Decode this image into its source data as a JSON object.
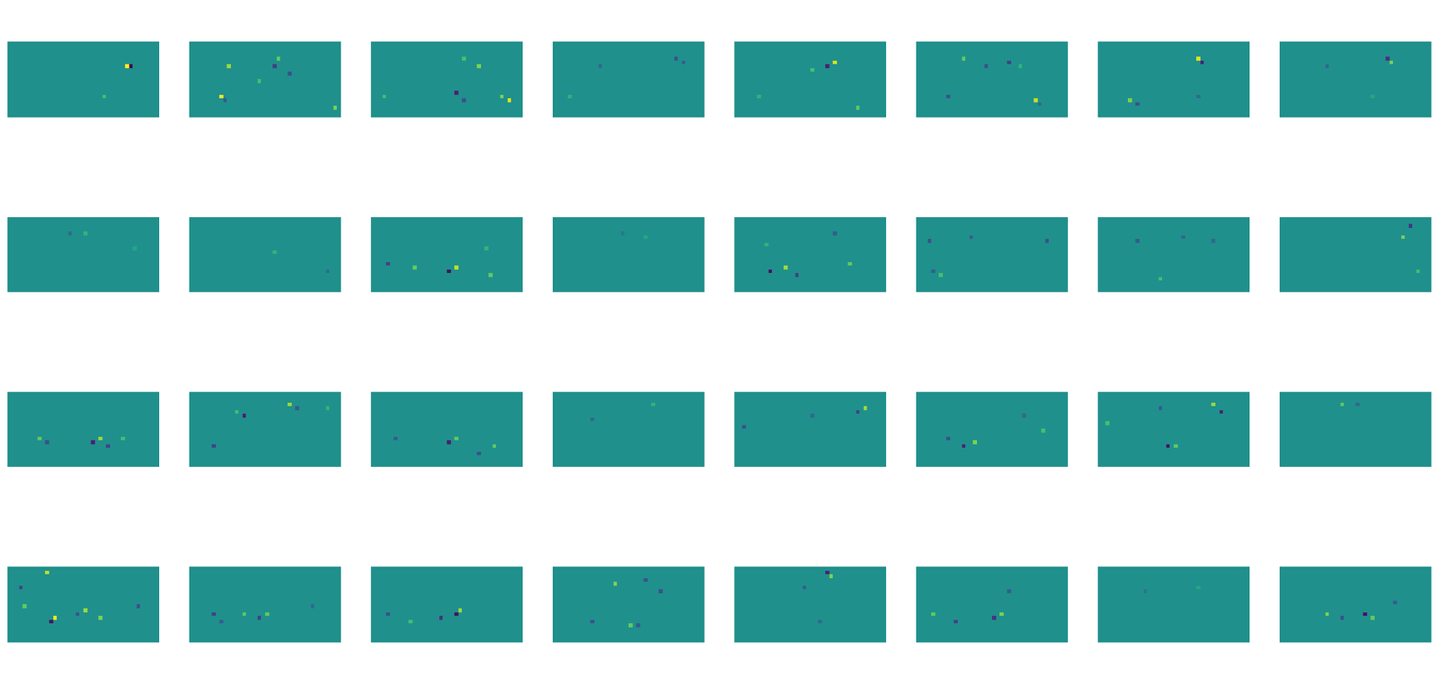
{
  "chart_data": [
    {
      "type": "heatmap",
      "shape": [
        20,
        40
      ],
      "clim": [
        -1,
        1
      ],
      "tick_labels": false,
      "cells": [
        [
          6,
          31,
          1
        ],
        [
          6,
          32,
          -1
        ],
        [
          14,
          25,
          0.4
        ]
      ]
    },
    {
      "type": "heatmap",
      "shape": [
        20,
        40
      ],
      "clim": [
        -1,
        1
      ],
      "tick_labels": false,
      "cells": [
        [
          4,
          23,
          0.5
        ],
        [
          6,
          22,
          -0.6
        ],
        [
          8,
          26,
          -0.5
        ],
        [
          10,
          18,
          0.4
        ],
        [
          14,
          8,
          1
        ],
        [
          15,
          9,
          -0.4
        ],
        [
          17,
          38,
          0.6
        ],
        [
          6,
          10,
          0.7
        ]
      ]
    },
    {
      "type": "heatmap",
      "shape": [
        20,
        40
      ],
      "clim": [
        -1,
        1
      ],
      "tick_labels": false,
      "cells": [
        [
          6,
          28,
          0.6
        ],
        [
          4,
          24,
          0.4
        ],
        [
          13,
          22,
          -0.8
        ],
        [
          15,
          24,
          -0.5
        ],
        [
          14,
          34,
          0.6
        ],
        [
          15,
          36,
          0.9
        ],
        [
          14,
          3,
          0.4
        ]
      ]
    },
    {
      "type": "heatmap",
      "shape": [
        20,
        40
      ],
      "clim": [
        -1,
        1
      ],
      "tick_labels": false,
      "cells": [
        [
          4,
          32,
          -0.5
        ],
        [
          5,
          34,
          -0.4
        ],
        [
          14,
          4,
          0.3
        ],
        [
          6,
          12,
          -0.3
        ]
      ]
    },
    {
      "type": "heatmap",
      "shape": [
        20,
        40
      ],
      "clim": [
        -1,
        1
      ],
      "tick_labels": false,
      "cells": [
        [
          6,
          24,
          -0.8
        ],
        [
          5,
          26,
          0.9
        ],
        [
          7,
          20,
          0.4
        ],
        [
          14,
          6,
          0.3
        ],
        [
          17,
          32,
          0.5
        ]
      ]
    },
    {
      "type": "heatmap",
      "shape": [
        20,
        40
      ],
      "clim": [
        -1,
        1
      ],
      "tick_labels": false,
      "cells": [
        [
          4,
          12,
          0.5
        ],
        [
          6,
          18,
          -0.5
        ],
        [
          5,
          24,
          -0.6
        ],
        [
          6,
          27,
          0.3
        ],
        [
          14,
          8,
          -0.5
        ],
        [
          15,
          31,
          0.8
        ],
        [
          16,
          32,
          -0.3
        ]
      ]
    },
    {
      "type": "heatmap",
      "shape": [
        20,
        40
      ],
      "clim": [
        -1,
        1
      ],
      "tick_labels": false,
      "cells": [
        [
          4,
          26,
          0.9
        ],
        [
          5,
          27,
          -0.8
        ],
        [
          15,
          8,
          0.6
        ],
        [
          16,
          10,
          -0.5
        ],
        [
          14,
          26,
          -0.3
        ]
      ]
    },
    {
      "type": "heatmap",
      "shape": [
        20,
        40
      ],
      "clim": [
        -1,
        1
      ],
      "tick_labels": false,
      "cells": [
        [
          4,
          28,
          -0.7
        ],
        [
          5,
          29,
          0.6
        ],
        [
          6,
          12,
          -0.3
        ],
        [
          14,
          24,
          0.2
        ]
      ]
    },
    {
      "type": "heatmap",
      "shape": [
        20,
        40
      ],
      "clim": [
        -1,
        1
      ],
      "tick_labels": false,
      "cells": [
        [
          4,
          16,
          -0.3
        ],
        [
          4,
          20,
          0.3
        ],
        [
          8,
          33,
          0.2
        ]
      ]
    },
    {
      "type": "heatmap",
      "shape": [
        20,
        40
      ],
      "clim": [
        -1,
        1
      ],
      "tick_labels": false,
      "cells": [
        [
          9,
          22,
          0.3
        ],
        [
          14,
          36,
          -0.3
        ]
      ]
    },
    {
      "type": "heatmap",
      "shape": [
        20,
        40
      ],
      "clim": [
        -1,
        1
      ],
      "tick_labels": false,
      "cells": [
        [
          12,
          4,
          -0.6
        ],
        [
          13,
          11,
          0.5
        ],
        [
          14,
          20,
          -0.9
        ],
        [
          13,
          22,
          0.8
        ],
        [
          15,
          31,
          0.5
        ],
        [
          8,
          30,
          0.3
        ]
      ]
    },
    {
      "type": "heatmap",
      "shape": [
        20,
        40
      ],
      "clim": [
        -1,
        1
      ],
      "tick_labels": false,
      "cells": [
        [
          4,
          18,
          -0.2
        ],
        [
          5,
          24,
          0.2
        ]
      ]
    },
    {
      "type": "heatmap",
      "shape": [
        20,
        40
      ],
      "clim": [
        -1,
        1
      ],
      "tick_labels": false,
      "cells": [
        [
          14,
          9,
          -0.9
        ],
        [
          13,
          13,
          0.7
        ],
        [
          15,
          16,
          -0.6
        ],
        [
          12,
          30,
          0.5
        ],
        [
          4,
          26,
          -0.4
        ],
        [
          7,
          8,
          0.3
        ]
      ]
    },
    {
      "type": "heatmap",
      "shape": [
        20,
        40
      ],
      "clim": [
        -1,
        1
      ],
      "tick_labels": false,
      "cells": [
        [
          6,
          3,
          -0.5
        ],
        [
          5,
          14,
          -0.4
        ],
        [
          6,
          34,
          -0.5
        ],
        [
          14,
          4,
          -0.4
        ],
        [
          15,
          6,
          0.4
        ]
      ]
    },
    {
      "type": "heatmap",
      "shape": [
        20,
        40
      ],
      "clim": [
        -1,
        1
      ],
      "tick_labels": false,
      "cells": [
        [
          6,
          10,
          -0.4
        ],
        [
          5,
          22,
          -0.3
        ],
        [
          16,
          16,
          0.4
        ],
        [
          6,
          30,
          -0.3
        ]
      ]
    },
    {
      "type": "heatmap",
      "shape": [
        20,
        40
      ],
      "clim": [
        -1,
        1
      ],
      "tick_labels": false,
      "cells": [
        [
          2,
          34,
          -0.7
        ],
        [
          5,
          32,
          0.6
        ],
        [
          14,
          36,
          0.4
        ]
      ]
    },
    {
      "type": "heatmap",
      "shape": [
        20,
        40
      ],
      "clim": [
        -1,
        1
      ],
      "tick_labels": false,
      "cells": [
        [
          12,
          8,
          0.5
        ],
        [
          13,
          10,
          -0.5
        ],
        [
          13,
          22,
          -0.8
        ],
        [
          12,
          24,
          0.7
        ],
        [
          14,
          26,
          -0.6
        ],
        [
          12,
          30,
          0.4
        ]
      ]
    },
    {
      "type": "heatmap",
      "shape": [
        20,
        40
      ],
      "clim": [
        -1,
        1
      ],
      "tick_labels": false,
      "cells": [
        [
          3,
          26,
          0.7
        ],
        [
          4,
          28,
          -0.4
        ],
        [
          6,
          14,
          -0.8
        ],
        [
          5,
          12,
          0.4
        ],
        [
          14,
          6,
          -0.6
        ],
        [
          4,
          36,
          0.3
        ]
      ]
    },
    {
      "type": "heatmap",
      "shape": [
        20,
        40
      ],
      "clim": [
        -1,
        1
      ],
      "tick_labels": false,
      "cells": [
        [
          12,
          6,
          -0.4
        ],
        [
          13,
          20,
          -0.8
        ],
        [
          12,
          22,
          0.5
        ],
        [
          16,
          28,
          -0.5
        ],
        [
          14,
          32,
          0.5
        ]
      ]
    },
    {
      "type": "heatmap",
      "shape": [
        20,
        40
      ],
      "clim": [
        -1,
        1
      ],
      "tick_labels": false,
      "cells": [
        [
          3,
          26,
          0.3
        ],
        [
          7,
          10,
          -0.3
        ]
      ]
    },
    {
      "type": "heatmap",
      "shape": [
        20,
        40
      ],
      "clim": [
        -1,
        1
      ],
      "tick_labels": false,
      "cells": [
        [
          5,
          32,
          -0.6
        ],
        [
          4,
          34,
          0.7
        ],
        [
          9,
          2,
          -0.5
        ],
        [
          6,
          20,
          -0.3
        ]
      ]
    },
    {
      "type": "heatmap",
      "shape": [
        20,
        40
      ],
      "clim": [
        -1,
        1
      ],
      "tick_labels": false,
      "cells": [
        [
          12,
          8,
          -0.5
        ],
        [
          14,
          12,
          -0.8
        ],
        [
          13,
          15,
          0.6
        ],
        [
          10,
          33,
          0.4
        ],
        [
          6,
          28,
          -0.3
        ]
      ]
    },
    {
      "type": "heatmap",
      "shape": [
        20,
        40
      ],
      "clim": [
        -1,
        1
      ],
      "tick_labels": false,
      "cells": [
        [
          4,
          16,
          -0.4
        ],
        [
          5,
          32,
          -0.8
        ],
        [
          3,
          30,
          0.7
        ],
        [
          14,
          18,
          -0.9
        ],
        [
          14,
          20,
          0.5
        ],
        [
          8,
          2,
          0.4
        ]
      ]
    },
    {
      "type": "heatmap",
      "shape": [
        20,
        40
      ],
      "clim": [
        -1,
        1
      ],
      "tick_labels": false,
      "cells": [
        [
          3,
          16,
          0.5
        ],
        [
          3,
          20,
          -0.3
        ]
      ]
    },
    {
      "type": "heatmap",
      "shape": [
        20,
        40
      ],
      "clim": [
        -1,
        1
      ],
      "tick_labels": false,
      "cells": [
        [
          1,
          10,
          0.8
        ],
        [
          5,
          3,
          -0.6
        ],
        [
          10,
          4,
          0.5
        ],
        [
          13,
          12,
          1
        ],
        [
          14,
          11,
          -0.9
        ],
        [
          11,
          20,
          0.7
        ],
        [
          12,
          18,
          -0.5
        ],
        [
          13,
          24,
          0.6
        ],
        [
          10,
          34,
          -0.5
        ]
      ]
    },
    {
      "type": "heatmap",
      "shape": [
        20,
        40
      ],
      "clim": [
        -1,
        1
      ],
      "tick_labels": false,
      "cells": [
        [
          12,
          6,
          -0.6
        ],
        [
          14,
          8,
          -0.4
        ],
        [
          12,
          14,
          0.5
        ],
        [
          13,
          18,
          -0.6
        ],
        [
          12,
          20,
          0.5
        ],
        [
          10,
          32,
          -0.3
        ]
      ]
    },
    {
      "type": "heatmap",
      "shape": [
        20,
        40
      ],
      "clim": [
        -1,
        1
      ],
      "tick_labels": false,
      "cells": [
        [
          12,
          4,
          -0.5
        ],
        [
          13,
          18,
          -0.7
        ],
        [
          12,
          22,
          -0.9
        ],
        [
          11,
          23,
          0.7
        ],
        [
          14,
          10,
          0.4
        ]
      ]
    },
    {
      "type": "heatmap",
      "shape": [
        20,
        40
      ],
      "clim": [
        -1,
        1
      ],
      "tick_labels": false,
      "cells": [
        [
          4,
          16,
          0.6
        ],
        [
          3,
          24,
          -0.5
        ],
        [
          6,
          28,
          -0.5
        ],
        [
          14,
          10,
          -0.5
        ],
        [
          15,
          20,
          0.5
        ],
        [
          15,
          22,
          -0.4
        ]
      ]
    },
    {
      "type": "heatmap",
      "shape": [
        20,
        40
      ],
      "clim": [
        -1,
        1
      ],
      "tick_labels": false,
      "cells": [
        [
          1,
          24,
          -0.8
        ],
        [
          2,
          25,
          0.6
        ],
        [
          5,
          18,
          -0.4
        ],
        [
          14,
          22,
          -0.3
        ]
      ]
    },
    {
      "type": "heatmap",
      "shape": [
        20,
        40
      ],
      "clim": [
        -1,
        1
      ],
      "tick_labels": false,
      "cells": [
        [
          12,
          4,
          0.5
        ],
        [
          14,
          10,
          -0.6
        ],
        [
          13,
          20,
          -0.7
        ],
        [
          12,
          22,
          0.6
        ],
        [
          6,
          24,
          -0.4
        ]
      ]
    },
    {
      "type": "heatmap",
      "shape": [
        20,
        40
      ],
      "clim": [
        -1,
        1
      ],
      "tick_labels": false,
      "cells": [
        [
          5,
          26,
          0.2
        ],
        [
          6,
          12,
          -0.2
        ]
      ]
    },
    {
      "type": "heatmap",
      "shape": [
        20,
        40
      ],
      "clim": [
        -1,
        1
      ],
      "tick_labels": false,
      "cells": [
        [
          12,
          12,
          0.6
        ],
        [
          13,
          16,
          -0.5
        ],
        [
          12,
          22,
          -0.9
        ],
        [
          13,
          24,
          0.5
        ],
        [
          9,
          30,
          -0.4
        ]
      ]
    }
  ]
}
